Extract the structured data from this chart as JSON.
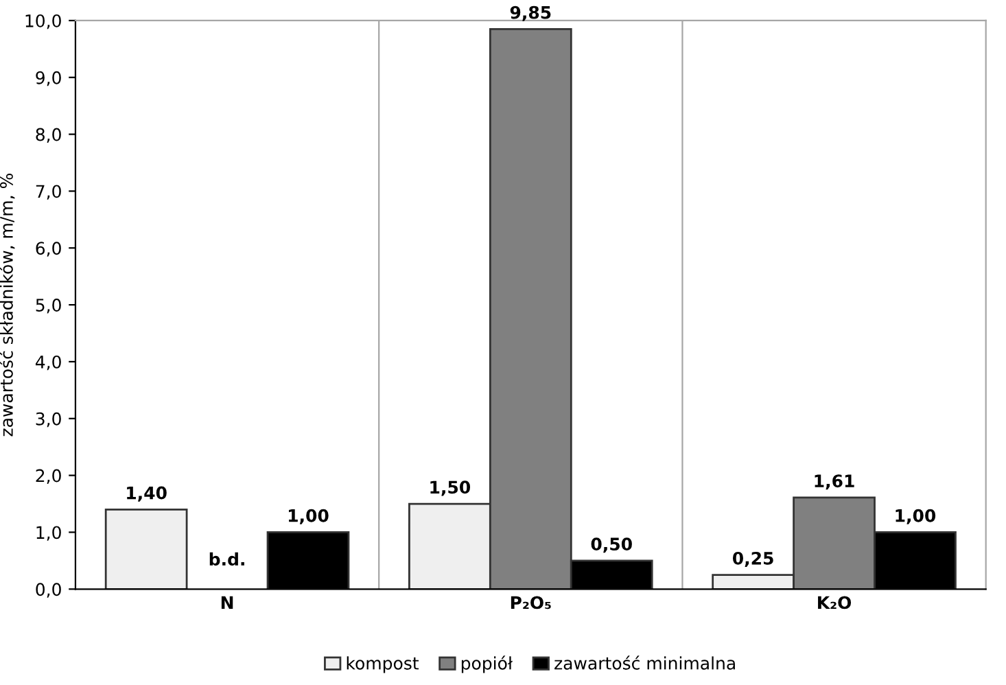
{
  "chart_data": {
    "type": "bar",
    "ylabel": "zawartość składników, m/m, %",
    "categories": [
      "N",
      "P₂O₅",
      "K₂O"
    ],
    "series": [
      {
        "name": "kompost",
        "color": "#efefef",
        "values": [
          1.4,
          1.5,
          0.25
        ],
        "value_labels": [
          "1,40",
          "1,50",
          "0,25"
        ]
      },
      {
        "name": "popiół",
        "color": "#808080",
        "values": [
          null,
          9.85,
          1.61
        ],
        "value_labels": [
          "b.d.",
          "9,85",
          "1,61"
        ]
      },
      {
        "name": "zawartość minimalna",
        "color": "#000000",
        "values": [
          1.0,
          0.5,
          1.0
        ],
        "value_labels": [
          "1,00",
          "0,50",
          "1,00"
        ]
      }
    ],
    "ylim": [
      0,
      10
    ],
    "yticks": [
      {
        "value": 0,
        "label": "0,0"
      },
      {
        "value": 1,
        "label": "1,0"
      },
      {
        "value": 2,
        "label": "2,0"
      },
      {
        "value": 3,
        "label": "3,0"
      },
      {
        "value": 4,
        "label": "4,0"
      },
      {
        "value": 5,
        "label": "5,0"
      },
      {
        "value": 6,
        "label": "6,0"
      },
      {
        "value": 7,
        "label": "7,0"
      },
      {
        "value": 8,
        "label": "8,0"
      },
      {
        "value": 9,
        "label": "9,0"
      },
      {
        "value": 10,
        "label": "10,0"
      }
    ],
    "grid": "x",
    "legend": "bottom"
  }
}
